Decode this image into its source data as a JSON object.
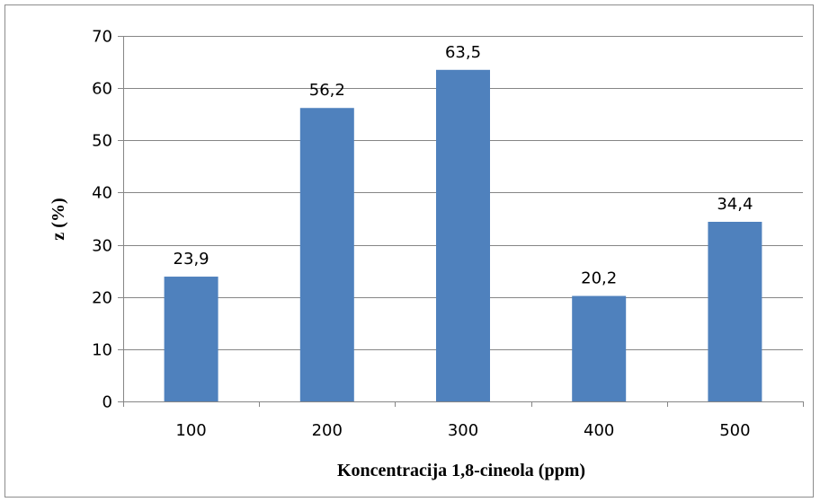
{
  "chart_data": {
    "type": "bar",
    "title": "",
    "xlabel": "Koncentracija 1,8-cineola (ppm)",
    "ylabel": "z (%)",
    "categories": [
      "100",
      "200",
      "300",
      "400",
      "500"
    ],
    "values": [
      23.9,
      56.2,
      63.5,
      20.2,
      34.4
    ],
    "value_labels": [
      "23,9",
      "56,2",
      "63,5",
      "20,2",
      "34,4"
    ],
    "ylim": [
      0,
      70
    ],
    "yticks": [
      "0",
      "10",
      "20",
      "30",
      "40",
      "50",
      "60",
      "70"
    ],
    "grid": true,
    "legend": "none",
    "bar_color": "#4F81BD",
    "grid_color": "#868686"
  }
}
